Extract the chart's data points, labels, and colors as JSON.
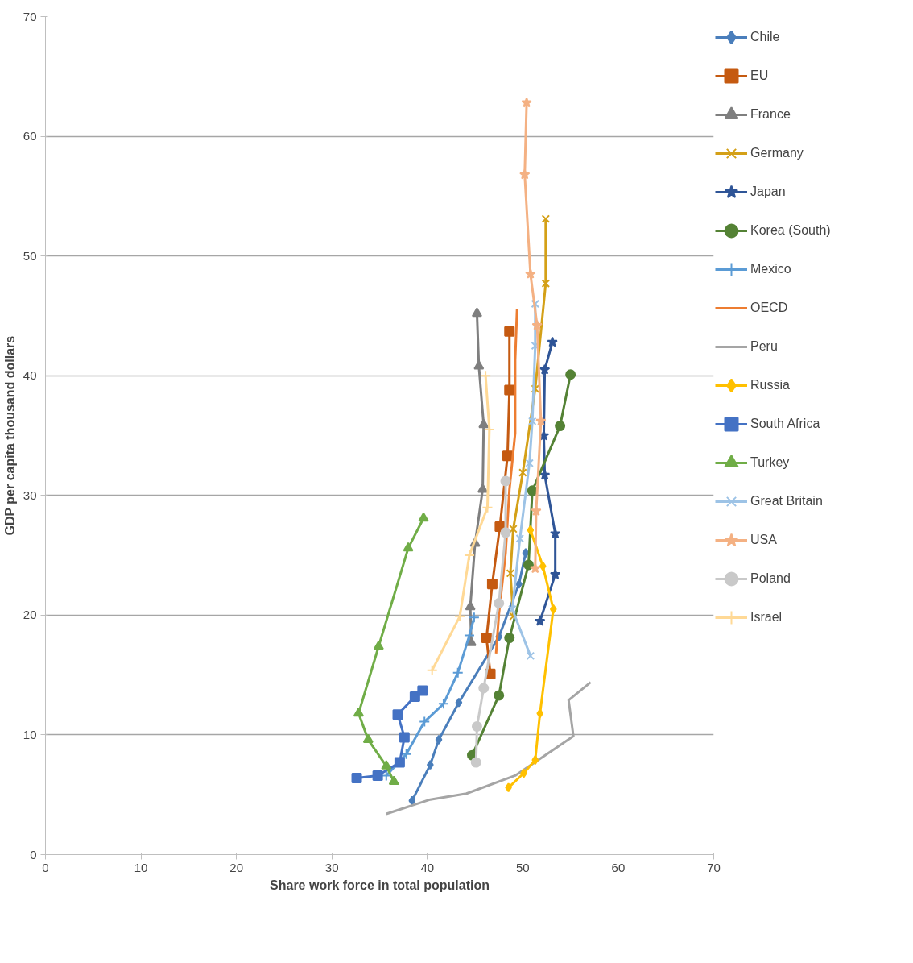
{
  "chart_data": {
    "type": "line",
    "xlabel": "Share work force in total population",
    "ylabel": "GDP per capita thousand dollars",
    "xlim": [
      0,
      70
    ],
    "ylim": [
      0,
      70
    ],
    "xticks": [
      0,
      10,
      20,
      30,
      40,
      50,
      60,
      70
    ],
    "yticks": [
      0,
      10,
      20,
      30,
      40,
      50,
      60,
      70
    ],
    "grid": "y",
    "legend": "right",
    "line_style": "solid",
    "series": [
      {
        "name": "Chile",
        "color": "#4a7ebb",
        "marker": "diamond",
        "x": [
          38.4,
          40.3,
          41.2,
          43.3,
          47.5,
          49.6,
          50.3
        ],
        "values": [
          4.5,
          7.5,
          9.6,
          12.7,
          18.2,
          22.6,
          25.2
        ]
      },
      {
        "name": "EU",
        "color": "#c55a11",
        "marker": "square",
        "x": [
          46.6,
          46.2,
          46.8,
          47.6,
          48.4,
          48.6,
          48.6
        ],
        "values": [
          15.1,
          18.1,
          22.6,
          27.4,
          33.3,
          38.8,
          43.7
        ]
      },
      {
        "name": "France",
        "color": "#7f7f7f",
        "marker": "triangle",
        "x": [
          44.6,
          44.5,
          45.0,
          45.8,
          45.9,
          45.4,
          45.2
        ],
        "values": [
          17.7,
          20.7,
          26.0,
          30.5,
          35.9,
          40.8,
          45.2
        ]
      },
      {
        "name": "Germany",
        "color": "#d4a017",
        "marker": "x",
        "x": [
          49.0,
          48.7,
          49.0,
          50.0,
          51.3,
          52.4,
          52.4
        ],
        "values": [
          19.9,
          23.5,
          27.2,
          31.9,
          38.9,
          47.7,
          53.1
        ]
      },
      {
        "name": "Japan",
        "color": "#2f5597",
        "marker": "star",
        "x": [
          51.8,
          53.4,
          53.4,
          52.3,
          52.2,
          52.3,
          53.1
        ],
        "values": [
          19.5,
          23.4,
          26.8,
          31.7,
          35.0,
          40.5,
          42.8
        ]
      },
      {
        "name": "Korea (South)",
        "color": "#548235",
        "marker": "circle",
        "x": [
          44.7,
          47.5,
          48.6,
          50.6,
          51.0,
          53.9,
          55.0
        ],
        "values": [
          8.3,
          13.3,
          18.1,
          24.2,
          30.4,
          35.8,
          40.1
        ]
      },
      {
        "name": "Mexico",
        "color": "#5b9bd5",
        "marker": "cross",
        "x": [
          35.7,
          37.8,
          39.7,
          41.7,
          43.2,
          44.4,
          44.9
        ],
        "values": [
          6.6,
          8.4,
          11.1,
          12.6,
          15.2,
          18.3,
          19.8
        ]
      },
      {
        "name": "OECD",
        "color": "#ed7d31",
        "marker": "none",
        "x": [
          47.2,
          47.5,
          48.2,
          48.6,
          49.2,
          49.2,
          49.4
        ],
        "values": [
          16.8,
          20.1,
          25.2,
          30.5,
          35.2,
          41.3,
          45.6
        ]
      },
      {
        "name": "Peru",
        "color": "#a5a5a5",
        "marker": "none",
        "x": [
          35.7,
          40.3,
          44.1,
          49.2,
          55.3,
          54.8,
          57.1
        ],
        "values": [
          3.4,
          4.6,
          5.1,
          6.6,
          9.9,
          12.9,
          14.4
        ]
      },
      {
        "name": "Russia",
        "color": "#ffc000",
        "marker": "diamond",
        "x": [
          48.5,
          50.1,
          51.3,
          51.8,
          53.2,
          52.1,
          50.8
        ],
        "values": [
          5.6,
          6.8,
          7.9,
          11.8,
          20.5,
          24.1,
          27.1
        ]
      },
      {
        "name": "South Africa",
        "color": "#4472c4",
        "marker": "square",
        "x": [
          32.6,
          34.8,
          37.1,
          37.6,
          36.9,
          38.7,
          39.5
        ],
        "values": [
          6.4,
          6.6,
          7.7,
          9.8,
          11.7,
          13.2,
          13.7
        ]
      },
      {
        "name": "Turkey",
        "color": "#70ad47",
        "marker": "triangle",
        "x": [
          36.5,
          35.7,
          33.8,
          32.8,
          34.9,
          38.0,
          39.6
        ],
        "values": [
          6.1,
          7.4,
          9.6,
          11.8,
          17.4,
          25.6,
          28.1
        ]
      },
      {
        "name": "Great Britain",
        "color": "#9dc3e6",
        "marker": "x",
        "x": [
          50.8,
          48.9,
          49.7,
          50.7,
          51.0,
          51.3,
          51.3
        ],
        "values": [
          16.6,
          20.5,
          26.4,
          32.7,
          36.2,
          42.5,
          46.0
        ]
      },
      {
        "name": "USA",
        "color": "#f4b183",
        "marker": "star",
        "x": [
          51.3,
          51.4,
          51.9,
          51.5,
          50.8,
          50.2,
          50.4
        ],
        "values": [
          23.9,
          28.7,
          36.2,
          44.2,
          48.5,
          56.8,
          62.8
        ]
      },
      {
        "name": "Poland",
        "color": "#c9c9c9",
        "marker": "circle",
        "x": [
          45.1,
          45.2,
          45.9,
          47.5,
          48.2,
          48.2
        ],
        "values": [
          7.7,
          10.7,
          13.9,
          21.0,
          26.9,
          31.2
        ]
      },
      {
        "name": "Israel",
        "color": "#ffd996",
        "marker": "cross",
        "x": [
          40.5,
          43.4,
          44.4,
          46.3,
          46.5,
          46.1
        ],
        "values": [
          15.4,
          19.9,
          25.0,
          29.0,
          35.5,
          40.0
        ]
      }
    ]
  }
}
